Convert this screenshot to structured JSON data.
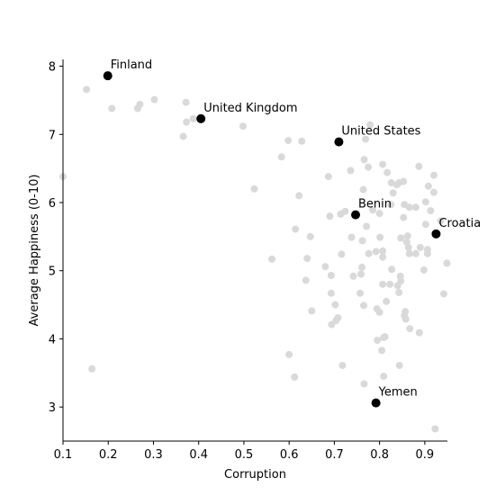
{
  "chart_data": {
    "type": "scatter",
    "title": "",
    "xlabel": "Corruption",
    "ylabel": "Average Happiness (0-10)",
    "xlim": [
      0.1,
      0.95
    ],
    "ylim": [
      2.5,
      8.1
    ],
    "x_ticks": [
      "0.1",
      "0.2",
      "0.3",
      "0.4",
      "0.5",
      "0.6",
      "0.7",
      "0.8",
      "0.9"
    ],
    "y_ticks": [
      "3",
      "4",
      "5",
      "6",
      "7",
      "8"
    ],
    "grid": false,
    "spines": "left-bottom",
    "background_color": "#d9d9d9",
    "highlight_color": "#000000",
    "highlighted": [
      {
        "label": "Finland",
        "x": 0.199,
        "y": 7.86
      },
      {
        "label": "United Kingdom",
        "x": 0.405,
        "y": 7.23
      },
      {
        "label": "United States",
        "x": 0.71,
        "y": 6.89
      },
      {
        "label": "Benin",
        "x": 0.747,
        "y": 5.82
      },
      {
        "label": "Croatia",
        "x": 0.925,
        "y": 5.54
      },
      {
        "label": "Yemen",
        "x": 0.792,
        "y": 3.06
      }
    ],
    "background_points": [
      [
        0.1,
        6.38
      ],
      [
        0.152,
        7.66
      ],
      [
        0.164,
        3.56
      ],
      [
        0.208,
        7.38
      ],
      [
        0.265,
        7.38
      ],
      [
        0.27,
        7.44
      ],
      [
        0.302,
        7.51
      ],
      [
        0.366,
        6.97
      ],
      [
        0.372,
        7.47
      ],
      [
        0.373,
        7.18
      ],
      [
        0.388,
        7.23
      ],
      [
        0.498,
        7.12
      ],
      [
        0.523,
        6.2
      ],
      [
        0.562,
        5.17
      ],
      [
        0.583,
        6.67
      ],
      [
        0.598,
        6.91
      ],
      [
        0.6,
        3.77
      ],
      [
        0.612,
        3.44
      ],
      [
        0.614,
        5.61
      ],
      [
        0.622,
        6.1
      ],
      [
        0.628,
        6.9
      ],
      [
        0.637,
        4.86
      ],
      [
        0.64,
        5.18
      ],
      [
        0.647,
        5.5
      ],
      [
        0.65,
        4.41
      ],
      [
        0.68,
        5.06
      ],
      [
        0.687,
        6.38
      ],
      [
        0.69,
        5.8
      ],
      [
        0.693,
        4.93
      ],
      [
        0.693,
        4.67
      ],
      [
        0.694,
        4.21
      ],
      [
        0.702,
        4.5
      ],
      [
        0.704,
        4.27
      ],
      [
        0.708,
        4.31
      ],
      [
        0.714,
        5.83
      ],
      [
        0.716,
        5.24
      ],
      [
        0.718,
        3.61
      ],
      [
        0.724,
        5.87
      ],
      [
        0.736,
        6.47
      ],
      [
        0.738,
        5.49
      ],
      [
        0.742,
        4.92
      ],
      [
        0.757,
        4.67
      ],
      [
        0.759,
        4.95
      ],
      [
        0.761,
        5.05
      ],
      [
        0.762,
        5.44
      ],
      [
        0.764,
        6.19
      ],
      [
        0.765,
        4.49
      ],
      [
        0.766,
        3.34
      ],
      [
        0.766,
        6.63
      ],
      [
        0.769,
        6.93
      ],
      [
        0.771,
        5.65
      ],
      [
        0.775,
        6.52
      ],
      [
        0.776,
        5.25
      ],
      [
        0.779,
        7.14
      ],
      [
        0.785,
        5.89
      ],
      [
        0.792,
        5.28
      ],
      [
        0.794,
        4.44
      ],
      [
        0.795,
        3.98
      ],
      [
        0.8,
        5.84
      ],
      [
        0.8,
        4.39
      ],
      [
        0.801,
        5.49
      ],
      [
        0.805,
        3.83
      ],
      [
        0.807,
        5.29
      ],
      [
        0.807,
        4.8
      ],
      [
        0.807,
        5.2
      ],
      [
        0.807,
        6.56
      ],
      [
        0.809,
        4.02
      ],
      [
        0.809,
        3.45
      ],
      [
        0.812,
        4.03
      ],
      [
        0.815,
        4.55
      ],
      [
        0.817,
        6.44
      ],
      [
        0.823,
        4.8
      ],
      [
        0.825,
        5.97
      ],
      [
        0.826,
        6.29
      ],
      [
        0.827,
        5.02
      ],
      [
        0.83,
        6.14
      ],
      [
        0.838,
        6.26
      ],
      [
        0.84,
        4.78
      ],
      [
        0.843,
        4.68
      ],
      [
        0.843,
        6.29
      ],
      [
        0.844,
        3.61
      ],
      [
        0.846,
        4.92
      ],
      [
        0.847,
        4.85
      ],
      [
        0.847,
        5.48
      ],
      [
        0.853,
        6.31
      ],
      [
        0.853,
        5.78
      ],
      [
        0.855,
        5.97
      ],
      [
        0.855,
        4.34
      ],
      [
        0.857,
        4.4
      ],
      [
        0.858,
        4.29
      ],
      [
        0.86,
        5.42
      ],
      [
        0.862,
        5.51
      ],
      [
        0.864,
        5.34
      ],
      [
        0.866,
        5.25
      ],
      [
        0.866,
        5.93
      ],
      [
        0.867,
        4.15
      ],
      [
        0.88,
        5.93
      ],
      [
        0.88,
        5.25
      ],
      [
        0.887,
        6.53
      ],
      [
        0.888,
        4.09
      ],
      [
        0.89,
        5.34
      ],
      [
        0.898,
        5.01
      ],
      [
        0.902,
        5.68
      ],
      [
        0.902,
        6.01
      ],
      [
        0.906,
        5.25
      ],
      [
        0.906,
        5.31
      ],
      [
        0.908,
        6.24
      ],
      [
        0.913,
        5.88
      ],
      [
        0.92,
        6.15
      ],
      [
        0.92,
        6.4
      ],
      [
        0.923,
        2.68
      ],
      [
        0.935,
        5.73
      ],
      [
        0.942,
        4.66
      ],
      [
        0.949,
        5.11
      ]
    ]
  }
}
